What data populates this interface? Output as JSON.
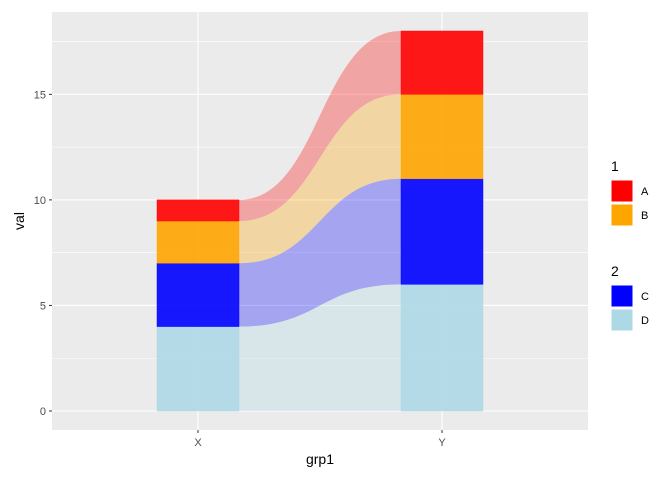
{
  "chart_data": {
    "type": "bar",
    "subtype": "stacked-alluvial",
    "categories": [
      "X",
      "Y"
    ],
    "xlabel": "grp1",
    "ylabel": "val",
    "ylim": [
      -0.9,
      18.9
    ],
    "yticks": [
      0,
      5,
      10,
      15
    ],
    "grid": true,
    "legend_position": "right",
    "series": [
      {
        "name": "D",
        "values": [
          4,
          6
        ],
        "color": "#ADD8E6"
      },
      {
        "name": "C",
        "values": [
          3,
          5
        ],
        "color": "#0000FF"
      },
      {
        "name": "B",
        "values": [
          2,
          4
        ],
        "color": "#FFA500"
      },
      {
        "name": "A",
        "values": [
          1,
          3
        ],
        "color": "#FF0000"
      }
    ],
    "legend_groups": [
      {
        "title": "1",
        "items": [
          {
            "label": "A",
            "color": "#FF0000"
          },
          {
            "label": "B",
            "color": "#FFA500"
          }
        ]
      },
      {
        "title": "2",
        "items": [
          {
            "label": "C",
            "color": "#0000FF"
          },
          {
            "label": "D",
            "color": "#ADD8E6"
          }
        ]
      }
    ]
  }
}
